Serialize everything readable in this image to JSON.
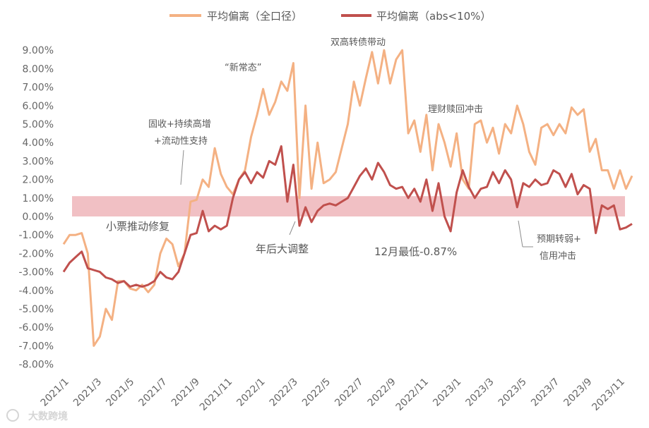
{
  "chart_data": {
    "type": "line",
    "legend": {
      "placement": "top-center"
    },
    "series": [
      {
        "name": "平均偏离（全口径）",
        "color": "#f4b183",
        "points": [
          [
            0,
            -1.5
          ],
          [
            1,
            -1.0
          ],
          [
            2,
            -1.0
          ],
          [
            3,
            -0.9
          ],
          [
            4,
            -2.0
          ],
          [
            5,
            -7.0
          ],
          [
            6,
            -6.5
          ],
          [
            7,
            -5.0
          ],
          [
            8,
            -5.6
          ],
          [
            9,
            -3.5
          ],
          [
            10,
            -3.5
          ],
          [
            11,
            -3.9
          ],
          [
            12,
            -4.0
          ],
          [
            13,
            -3.7
          ],
          [
            14,
            -4.1
          ],
          [
            15,
            -3.7
          ],
          [
            16,
            -2.0
          ],
          [
            17,
            -1.2
          ],
          [
            18,
            -1.5
          ],
          [
            19,
            -2.7
          ],
          [
            20,
            -2.0
          ],
          [
            21,
            0.8
          ],
          [
            22,
            0.9
          ],
          [
            23,
            2.0
          ],
          [
            24,
            1.6
          ],
          [
            25,
            3.7
          ],
          [
            26,
            2.3
          ],
          [
            27,
            1.6
          ],
          [
            28,
            1.2
          ],
          [
            29,
            2.0
          ],
          [
            30,
            2.5
          ],
          [
            31,
            4.3
          ],
          [
            32,
            5.5
          ],
          [
            33,
            6.9
          ],
          [
            34,
            5.5
          ],
          [
            35,
            6.2
          ],
          [
            36,
            7.3
          ],
          [
            37,
            6.8
          ],
          [
            38,
            8.3
          ],
          [
            39,
            1.0
          ],
          [
            40,
            6.0
          ],
          [
            41,
            1.5
          ],
          [
            42,
            4.0
          ],
          [
            43,
            1.8
          ],
          [
            44,
            2.0
          ],
          [
            45,
            2.4
          ],
          [
            46,
            3.7
          ],
          [
            47,
            5.0
          ],
          [
            48,
            7.3
          ],
          [
            49,
            6.0
          ],
          [
            50,
            7.5
          ],
          [
            51,
            8.9
          ],
          [
            52,
            7.2
          ],
          [
            53,
            9.0
          ],
          [
            54,
            7.2
          ],
          [
            55,
            8.5
          ],
          [
            56,
            9.0
          ],
          [
            57,
            4.5
          ],
          [
            58,
            5.2
          ],
          [
            59,
            3.5
          ],
          [
            60,
            5.5
          ],
          [
            61,
            2.5
          ],
          [
            62,
            5.0
          ],
          [
            63,
            4.0
          ],
          [
            64,
            2.7
          ],
          [
            65,
            4.5
          ],
          [
            66,
            2.0
          ],
          [
            67,
            1.5
          ],
          [
            68,
            5.0
          ],
          [
            69,
            5.2
          ],
          [
            70,
            4.0
          ],
          [
            71,
            4.8
          ],
          [
            72,
            3.4
          ],
          [
            73,
            5.0
          ],
          [
            74,
            4.5
          ],
          [
            75,
            6.0
          ],
          [
            76,
            5.0
          ],
          [
            77,
            3.5
          ],
          [
            78,
            2.8
          ],
          [
            79,
            4.8
          ],
          [
            80,
            5.0
          ],
          [
            81,
            4.4
          ],
          [
            82,
            5.0
          ],
          [
            83,
            4.5
          ],
          [
            84,
            5.9
          ],
          [
            85,
            5.5
          ],
          [
            86,
            5.8
          ],
          [
            87,
            3.5
          ],
          [
            88,
            4.2
          ],
          [
            89,
            2.5
          ],
          [
            90,
            2.5
          ],
          [
            91,
            1.5
          ],
          [
            92,
            2.5
          ],
          [
            93,
            1.5
          ],
          [
            94,
            2.2
          ]
        ]
      },
      {
        "name": "平均偏离（abs<10%）",
        "color": "#c0504d",
        "points": [
          [
            0,
            -3.0
          ],
          [
            1,
            -2.5
          ],
          [
            2,
            -2.2
          ],
          [
            3,
            -1.9
          ],
          [
            4,
            -2.8
          ],
          [
            5,
            -2.9
          ],
          [
            6,
            -3.0
          ],
          [
            7,
            -3.3
          ],
          [
            8,
            -3.4
          ],
          [
            9,
            -3.6
          ],
          [
            10,
            -3.5
          ],
          [
            11,
            -3.8
          ],
          [
            12,
            -3.7
          ],
          [
            13,
            -3.8
          ],
          [
            14,
            -3.7
          ],
          [
            15,
            -3.5
          ],
          [
            16,
            -3.0
          ],
          [
            17,
            -3.3
          ],
          [
            18,
            -3.4
          ],
          [
            19,
            -3.0
          ],
          [
            20,
            -2.0
          ],
          [
            21,
            -1.0
          ],
          [
            22,
            -0.9
          ],
          [
            23,
            0.3
          ],
          [
            24,
            -0.8
          ],
          [
            25,
            -0.5
          ],
          [
            26,
            -0.7
          ],
          [
            27,
            -0.5
          ],
          [
            28,
            1.0
          ],
          [
            29,
            2.0
          ],
          [
            30,
            2.4
          ],
          [
            31,
            1.8
          ],
          [
            32,
            2.4
          ],
          [
            33,
            2.1
          ],
          [
            34,
            3.0
          ],
          [
            35,
            2.8
          ],
          [
            36,
            3.8
          ],
          [
            37,
            0.8
          ],
          [
            38,
            2.8
          ],
          [
            39,
            -0.5
          ],
          [
            40,
            0.5
          ],
          [
            41,
            -0.3
          ],
          [
            42,
            0.3
          ],
          [
            43,
            0.6
          ],
          [
            44,
            0.7
          ],
          [
            45,
            0.6
          ],
          [
            46,
            0.8
          ],
          [
            47,
            1.0
          ],
          [
            48,
            1.6
          ],
          [
            49,
            2.2
          ],
          [
            50,
            2.6
          ],
          [
            51,
            2.0
          ],
          [
            52,
            2.9
          ],
          [
            53,
            2.4
          ],
          [
            54,
            1.7
          ],
          [
            55,
            1.5
          ],
          [
            56,
            1.6
          ],
          [
            57,
            1.0
          ],
          [
            58,
            1.5
          ],
          [
            59,
            0.8
          ],
          [
            60,
            2.0
          ],
          [
            61,
            0.3
          ],
          [
            62,
            1.8
          ],
          [
            63,
            0.0
          ],
          [
            64,
            -0.8
          ],
          [
            65,
            1.3
          ],
          [
            66,
            2.5
          ],
          [
            67,
            1.6
          ],
          [
            68,
            1.0
          ],
          [
            69,
            1.5
          ],
          [
            70,
            1.6
          ],
          [
            71,
            2.4
          ],
          [
            72,
            1.8
          ],
          [
            73,
            2.5
          ],
          [
            74,
            2.0
          ],
          [
            75,
            0.5
          ],
          [
            76,
            1.8
          ],
          [
            77,
            1.6
          ],
          [
            78,
            2.0
          ],
          [
            79,
            1.7
          ],
          [
            80,
            1.8
          ],
          [
            81,
            2.5
          ],
          [
            82,
            2.3
          ],
          [
            83,
            1.6
          ],
          [
            84,
            2.3
          ],
          [
            85,
            1.2
          ],
          [
            86,
            1.7
          ],
          [
            87,
            1.5
          ],
          [
            88,
            -0.9
          ],
          [
            89,
            0.6
          ],
          [
            90,
            0.4
          ],
          [
            91,
            0.6
          ],
          [
            92,
            -0.7
          ],
          [
            93,
            -0.6
          ],
          [
            94,
            -0.4
          ]
        ]
      }
    ],
    "x_categories": [
      "2021/1",
      "2021/3",
      "2021/5",
      "2021/7",
      "2021/9",
      "2021/11",
      "2022/1",
      "2022/3",
      "2022/5",
      "2022/7",
      "2022/9",
      "2022/11",
      "2023/1",
      "2023/3",
      "2023/5",
      "2023/7",
      "2023/9",
      "2023/11"
    ],
    "y_ticks": [
      "9.00%",
      "8.00%",
      "7.00%",
      "6.00%",
      "5.00%",
      "4.00%",
      "3.00%",
      "2.00%",
      "1.00%",
      "0.00%",
      "-1.00%",
      "-2.00%",
      "-3.00%",
      "-4.00%",
      "-5.00%",
      "-6.00%",
      "-7.00%",
      "-8.00%"
    ],
    "ylim": [
      -8,
      9.4
    ],
    "grid": false,
    "band": {
      "y_low": 0,
      "y_high": 1.1,
      "color": "#f0b9be"
    },
    "annotations": [
      {
        "text": "双高转债带动"
      },
      {
        "text": "“新常态”"
      },
      {
        "text": "固收+持续高增"
      },
      {
        "text": "+流动性支持"
      },
      {
        "text": "理财赎回冲击"
      },
      {
        "text": "小票推动修复"
      },
      {
        "text": "年后大调整"
      },
      {
        "text": "12月最低-0.87%"
      },
      {
        "text": "预期转弱+"
      },
      {
        "text": "信用冲击"
      }
    ]
  },
  "watermark": "大数跨境"
}
